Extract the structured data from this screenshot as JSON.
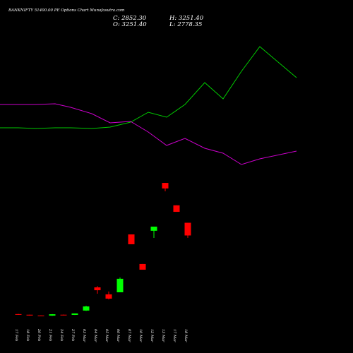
{
  "chart_data": {
    "type": "candlestick",
    "title": "BANKNIFTY 51400.00 PE Options Chart Munafasutra.com",
    "header": [
      "C: 2852.30",
      "O: 3251.40",
      "H: 3251.40",
      "L: 2778.35"
    ],
    "categories": [
      "17 Feb",
      "18 Feb",
      "20 Feb",
      "21 Feb",
      "24 Feb",
      "27 Feb",
      "03 Mar",
      "04 Mar",
      "05 Mar",
      "06 Mar",
      "07 Mar",
      "10 Mar",
      "12 Mar",
      "13 Mar",
      "17 Mar",
      "18 Mar"
    ],
    "open": [
      380,
      360,
      335,
      330,
      360,
      355,
      490,
      1220,
      1000,
      1065,
      2885,
      1955,
      3000,
      4505,
      3800,
      3251.4
    ],
    "high": [
      385,
      360,
      338,
      380,
      362,
      400,
      640,
      1260,
      1090,
      1530,
      2885,
      1955,
      3130,
      4505,
      3800,
      3251.4
    ],
    "low": [
      355,
      330,
      328,
      325,
      338,
      352,
      480,
      1020,
      840,
      1065,
      2575,
      1775,
      2775,
      4240,
      3595,
      2778.35
    ],
    "close": [
      360,
      335,
      330,
      375,
      340,
      400,
      620,
      1130,
      865,
      1490,
      2575,
      1775,
      3130,
      4330,
      3595,
      2852.3
    ],
    "up_color": "#00ff00",
    "down_color": "#ff0000",
    "ylim": [
      -844,
      10256
    ],
    "lines": {
      "x": [
        0,
        26,
        50,
        78,
        100,
        130,
        156,
        185,
        210,
        236,
        262,
        290,
        316,
        342,
        368,
        420
      ],
      "xlim": [
        0,
        500
      ],
      "ylim": [
        0,
        500
      ],
      "series": [
        {
          "color": "#00cc00",
          "values": [
            319,
            319,
            318,
            319,
            319,
            318,
            320,
            327,
            341,
            334,
            352,
            383,
            360,
            399,
            434,
            390
          ]
        },
        {
          "color": "#cc00cc",
          "values": [
            352,
            352,
            352,
            353,
            348,
            339,
            326,
            328,
            313,
            294,
            304,
            290,
            283,
            267,
            275,
            286
          ]
        }
      ]
    }
  }
}
